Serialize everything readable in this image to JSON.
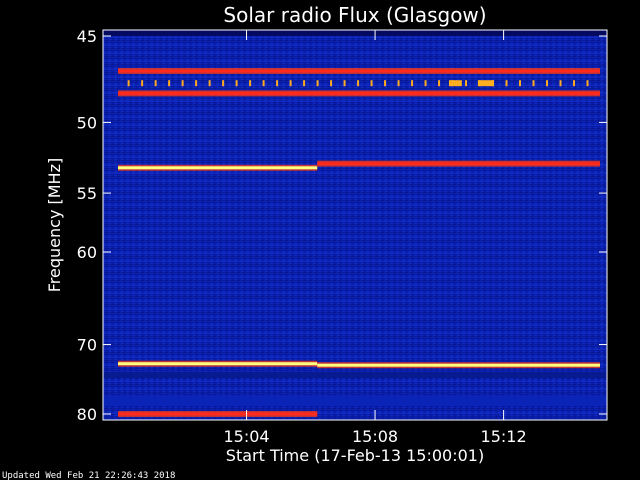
{
  "chart_data": {
    "type": "heatmap",
    "title": "Solar radio Flux (Glasgow)",
    "xlabel": "Start Time (17-Feb-13 15:00:01)",
    "ylabel": "Frequency [MHz]",
    "x_ticks": [
      "15:04",
      "15:08",
      "15:12"
    ],
    "x_tick_values_min": [
      4,
      8,
      12
    ],
    "x_range_min": [
      0.0,
      15.0
    ],
    "y_ticks": [
      45,
      50,
      55,
      60,
      70,
      80
    ],
    "y_range_mhz": [
      45,
      80
    ],
    "y_scale": "reciprocal",
    "grid": false,
    "emission_lines": [
      {
        "freq_mhz": 46.9,
        "t_start_min": 0.0,
        "t_end_min": 15.0,
        "level": "red"
      },
      {
        "freq_mhz": 48.2,
        "t_start_min": 0.0,
        "t_end_min": 15.0,
        "level": "red"
      },
      {
        "freq_mhz": 53.1,
        "t_start_min": 0.0,
        "t_end_min": 6.2,
        "level": "yellow"
      },
      {
        "freq_mhz": 52.8,
        "t_start_min": 6.2,
        "t_end_min": 15.0,
        "level": "red"
      },
      {
        "freq_mhz": 72.5,
        "t_start_min": 0.0,
        "t_end_min": 6.2,
        "level": "yellow"
      },
      {
        "freq_mhz": 72.7,
        "t_start_min": 6.2,
        "t_end_min": 15.0,
        "level": "yellow"
      },
      {
        "freq_mhz": 80.0,
        "t_start_min": 0.0,
        "t_end_min": 6.2,
        "level": "red"
      }
    ],
    "colors": {
      "background": "#000000",
      "low": "#0a1fb0",
      "mid": "#ff2a1a",
      "high": "#ffff80"
    }
  },
  "footer": "Updated Wed Feb 21 22:26:43 2018"
}
